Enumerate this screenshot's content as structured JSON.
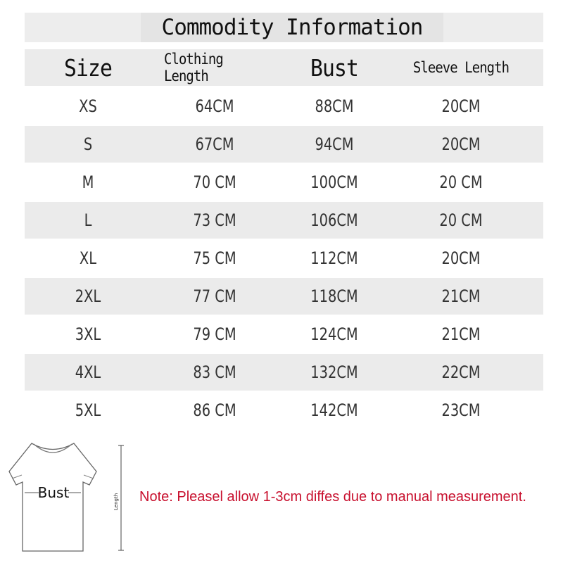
{
  "title": "Commodity Information",
  "headers": [
    "Size",
    "Clothing Length",
    "Bust",
    "Sleeve Length"
  ],
  "rows": [
    [
      "XS",
      "64CM",
      "88CM",
      "20CM"
    ],
    [
      "S",
      "67CM",
      "94CM",
      "20CM"
    ],
    [
      "M",
      "70 CM",
      "100CM",
      "20 CM"
    ],
    [
      "L",
      "73 CM",
      "106CM",
      "20 CM"
    ],
    [
      "XL",
      "75 CM",
      "112CM",
      "20CM"
    ],
    [
      "2XL",
      "77 CM",
      "118CM",
      "21CM"
    ],
    [
      "3XL",
      "79 CM",
      "124CM",
      "21CM"
    ],
    [
      "4XL",
      "83 CM",
      "132CM",
      "22CM"
    ],
    [
      "5XL",
      "86 CM",
      "142CM",
      "23CM"
    ]
  ],
  "diagram": {
    "bust_label": "Bust",
    "length_label": "Length"
  },
  "note": "Note: Pleasel allow 1-3cm diffes due to manual measurement.",
  "colors": {
    "note": "#c8102e",
    "row_stripe": "#ebebeb"
  }
}
